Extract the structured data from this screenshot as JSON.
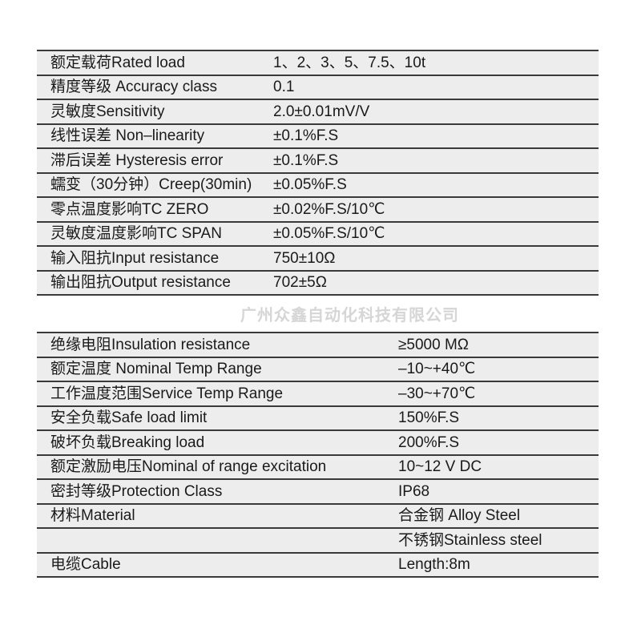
{
  "table1": {
    "rows": [
      {
        "label": "额定载荷Rated load",
        "value": "1、2、3、5、7.5、10t"
      },
      {
        "label": "精度等级 Accuracy class",
        "value": "0.1"
      },
      {
        "label": "灵敏度Sensitivity",
        "value": "2.0±0.01mV/V"
      },
      {
        "label": "线性误差 Non–linearity",
        "value": "±0.1%F.S"
      },
      {
        "label": "滞后误差 Hysteresis error",
        "value": "±0.1%F.S"
      },
      {
        "label": "蠕变（30分钟）Creep(30min)",
        "value": "±0.05%F.S"
      },
      {
        "label": "零点温度影响TC ZERO",
        "value": "±0.02%F.S/10℃"
      },
      {
        "label": "灵敏度温度影响TC SPAN",
        "value": "±0.05%F.S/10℃"
      },
      {
        "label": "输入阻抗Input resistance",
        "value": "750±10Ω"
      },
      {
        "label": "输出阻抗Output resistance",
        "value": "702±5Ω"
      }
    ]
  },
  "table2": {
    "rows": [
      {
        "label": "绝缘电阻Insulation resistance",
        "value": "≥5000 MΩ"
      },
      {
        "label": "额定温度 Nominal Temp Range",
        "value": "–10~+40℃"
      },
      {
        "label": "工作温度范围Service Temp Range",
        "value": "–30~+70℃"
      },
      {
        "label": "安全负载Safe load limit",
        "value": "150%F.S"
      },
      {
        "label": "破坏负载Breaking load",
        "value": "200%F.S"
      },
      {
        "label": "额定激励电压Nominal of range excitation",
        "value": "10~12 V DC"
      },
      {
        "label": "密封等级Protection Class",
        "value": "IP68"
      },
      {
        "label": "材料Material",
        "value": "合金钢 Alloy Steel"
      },
      {
        "label": "",
        "value": "不锈钢Stainless steel"
      },
      {
        "label": "电缆Cable",
        "value": "Length:8m"
      }
    ]
  },
  "watermark": "广州众鑫自动化科技有限公司"
}
